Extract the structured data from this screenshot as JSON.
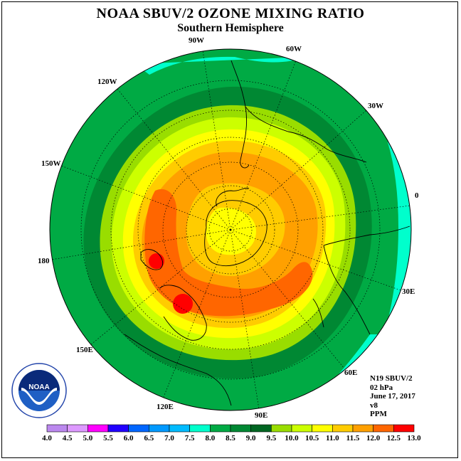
{
  "header": {
    "title": "NOAA SBUV/2 OZONE MIXING RATIO",
    "subtitle": "Southern Hemisphere"
  },
  "map": {
    "projection": "polar stereographic (south pole)",
    "longitude_labels": [
      "0",
      "30W",
      "60W",
      "90W",
      "120W",
      "150W",
      "180",
      "150E",
      "120E",
      "90E",
      "60E",
      "30E"
    ],
    "contour_colors_center_to_edge": [
      "#ffff00",
      "#ffcc00",
      "#ffa000",
      "#ff6600",
      "#ffa000",
      "#ffcc00",
      "#ffff00",
      "#ccff00",
      "#99dd00",
      "#008800",
      "#00aa44",
      "#00ffcc"
    ],
    "highlights": [
      "red maximum near 165E",
      "red maximum near 140E"
    ]
  },
  "info": {
    "satellite": "N19 SBUV/2",
    "level": "02 hPa",
    "date": "June 17, 2017",
    "version": "v8",
    "units": "PPM"
  },
  "colorbar": {
    "ticks": [
      "4.0",
      "4.5",
      "5.0",
      "5.5",
      "6.0",
      "6.5",
      "7.0",
      "7.5",
      "8.0",
      "8.5",
      "9.0",
      "9.5",
      "10.0",
      "10.5",
      "11.0",
      "11.5",
      "12.0",
      "12.5",
      "13.0"
    ],
    "colors": [
      "#bb88ee",
      "#dd99ff",
      "#ff00ff",
      "#2200ff",
      "#0066ff",
      "#0099ff",
      "#00bbff",
      "#00ffcc",
      "#00aa44",
      "#008833",
      "#006622",
      "#99dd00",
      "#ccff00",
      "#ffff00",
      "#ffcc00",
      "#ffa000",
      "#ff6600",
      "#ff0000",
      "#996633"
    ]
  },
  "logo": {
    "text": "NOAA",
    "ring_text": "NATIONAL OCEANIC AND ATMOSPHERIC ADMINISTRATION · U.S. DEPARTMENT OF COMMERCE"
  }
}
